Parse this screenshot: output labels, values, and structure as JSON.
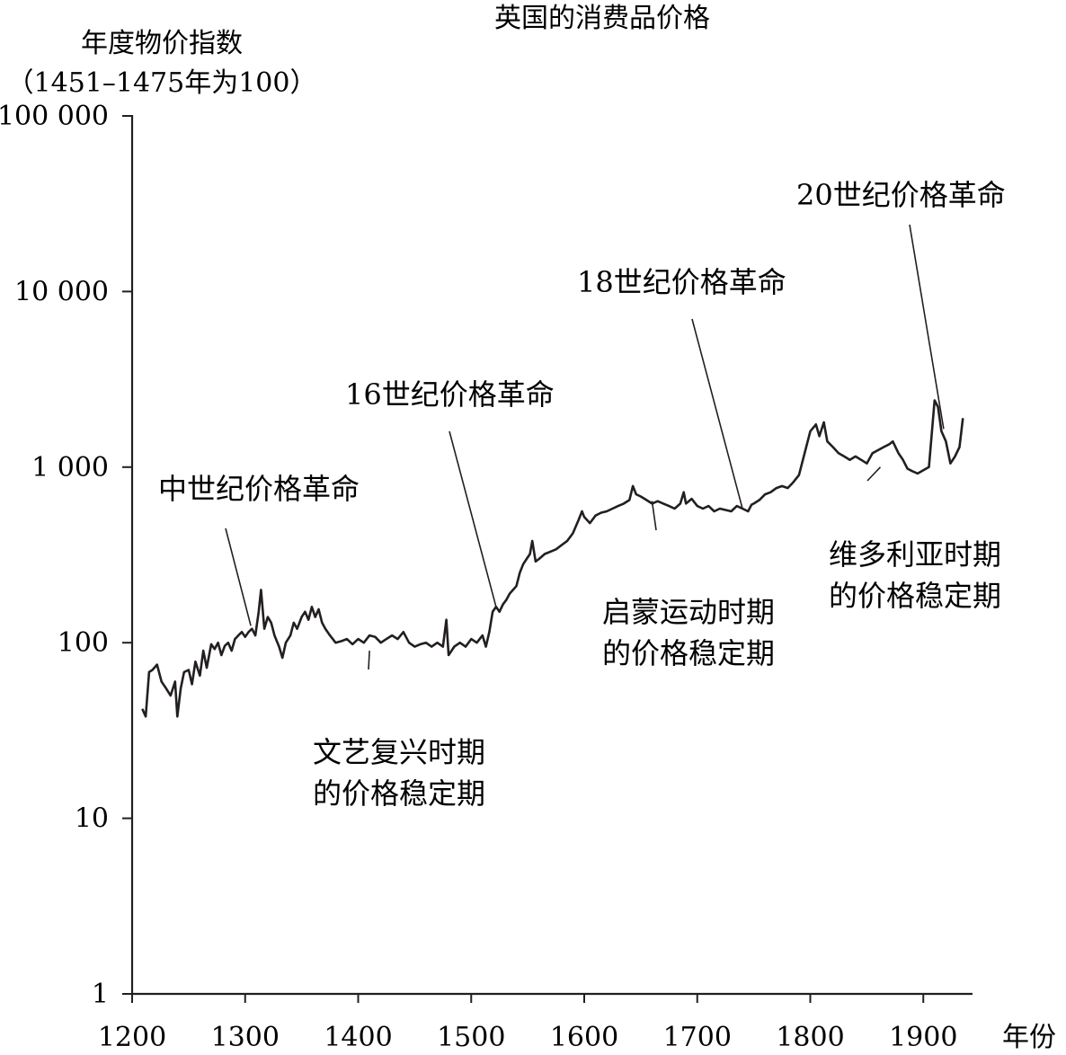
{
  "chart_data": {
    "type": "line",
    "title": "英国的消费品价格",
    "ylabel_lines": [
      "年度物价指数",
      "（1451–1475年为100）"
    ],
    "xlabel": "年份",
    "y_scale": "log",
    "ylim": [
      1,
      100000
    ],
    "xlim": [
      1200,
      1940
    ],
    "y_ticks": [
      {
        "value": 1,
        "label": "1"
      },
      {
        "value": 10,
        "label": "10"
      },
      {
        "value": 100,
        "label": "100"
      },
      {
        "value": 1000,
        "label": "1 000"
      },
      {
        "value": 10000,
        "label": "10 000"
      },
      {
        "value": 100000,
        "label": "100 000"
      }
    ],
    "x_ticks": [
      {
        "value": 1200,
        "label": "1200"
      },
      {
        "value": 1300,
        "label": "1300"
      },
      {
        "value": 1400,
        "label": "1400"
      },
      {
        "value": 1500,
        "label": "1500"
      },
      {
        "value": 1600,
        "label": "1600"
      },
      {
        "value": 1700,
        "label": "1700"
      },
      {
        "value": 1800,
        "label": "1800"
      },
      {
        "value": 1900,
        "label": "1900"
      }
    ],
    "grid": false,
    "series": [
      {
        "color": "#231f20",
        "points": [
          [
            1209,
            42
          ],
          [
            1212,
            38
          ],
          [
            1215,
            68
          ],
          [
            1218,
            70
          ],
          [
            1222,
            75
          ],
          [
            1226,
            60
          ],
          [
            1230,
            55
          ],
          [
            1234,
            50
          ],
          [
            1238,
            60
          ],
          [
            1240,
            38
          ],
          [
            1243,
            55
          ],
          [
            1246,
            68
          ],
          [
            1250,
            70
          ],
          [
            1253,
            58
          ],
          [
            1256,
            78
          ],
          [
            1260,
            65
          ],
          [
            1263,
            90
          ],
          [
            1266,
            72
          ],
          [
            1270,
            98
          ],
          [
            1273,
            92
          ],
          [
            1276,
            100
          ],
          [
            1279,
            85
          ],
          [
            1282,
            96
          ],
          [
            1285,
            100
          ],
          [
            1288,
            90
          ],
          [
            1291,
            105
          ],
          [
            1294,
            110
          ],
          [
            1297,
            115
          ],
          [
            1300,
            108
          ],
          [
            1303,
            115
          ],
          [
            1306,
            120
          ],
          [
            1309,
            110
          ],
          [
            1312,
            150
          ],
          [
            1314,
            200
          ],
          [
            1317,
            120
          ],
          [
            1320,
            140
          ],
          [
            1323,
            130
          ],
          [
            1326,
            110
          ],
          [
            1330,
            95
          ],
          [
            1333,
            82
          ],
          [
            1336,
            100
          ],
          [
            1340,
            110
          ],
          [
            1343,
            130
          ],
          [
            1346,
            120
          ],
          [
            1350,
            140
          ],
          [
            1353,
            150
          ],
          [
            1356,
            135
          ],
          [
            1359,
            160
          ],
          [
            1362,
            140
          ],
          [
            1365,
            155
          ],
          [
            1368,
            130
          ],
          [
            1371,
            120
          ],
          [
            1375,
            110
          ],
          [
            1380,
            100
          ],
          [
            1385,
            102
          ],
          [
            1390,
            105
          ],
          [
            1395,
            98
          ],
          [
            1400,
            105
          ],
          [
            1405,
            100
          ],
          [
            1410,
            110
          ],
          [
            1415,
            108
          ],
          [
            1420,
            100
          ],
          [
            1425,
            105
          ],
          [
            1430,
            110
          ],
          [
            1435,
            105
          ],
          [
            1440,
            115
          ],
          [
            1445,
            100
          ],
          [
            1450,
            95
          ],
          [
            1455,
            98
          ],
          [
            1460,
            100
          ],
          [
            1465,
            95
          ],
          [
            1470,
            100
          ],
          [
            1475,
            95
          ],
          [
            1478,
            135
          ],
          [
            1480,
            85
          ],
          [
            1485,
            95
          ],
          [
            1490,
            100
          ],
          [
            1495,
            95
          ],
          [
            1500,
            105
          ],
          [
            1505,
            100
          ],
          [
            1510,
            110
          ],
          [
            1513,
            95
          ],
          [
            1516,
            115
          ],
          [
            1519,
            150
          ],
          [
            1522,
            160
          ],
          [
            1525,
            150
          ],
          [
            1528,
            165
          ],
          [
            1531,
            175
          ],
          [
            1534,
            190
          ],
          [
            1537,
            200
          ],
          [
            1540,
            210
          ],
          [
            1543,
            250
          ],
          [
            1546,
            280
          ],
          [
            1549,
            300
          ],
          [
            1552,
            320
          ],
          [
            1554,
            380
          ],
          [
            1557,
            290
          ],
          [
            1560,
            300
          ],
          [
            1565,
            320
          ],
          [
            1570,
            330
          ],
          [
            1575,
            340
          ],
          [
            1580,
            360
          ],
          [
            1585,
            380
          ],
          [
            1590,
            420
          ],
          [
            1595,
            500
          ],
          [
            1598,
            560
          ],
          [
            1600,
            520
          ],
          [
            1605,
            480
          ],
          [
            1610,
            530
          ],
          [
            1615,
            550
          ],
          [
            1620,
            560
          ],
          [
            1625,
            580
          ],
          [
            1630,
            600
          ],
          [
            1635,
            620
          ],
          [
            1640,
            650
          ],
          [
            1643,
            780
          ],
          [
            1646,
            700
          ],
          [
            1650,
            680
          ],
          [
            1655,
            650
          ],
          [
            1660,
            620
          ],
          [
            1665,
            640
          ],
          [
            1670,
            620
          ],
          [
            1675,
            600
          ],
          [
            1680,
            580
          ],
          [
            1685,
            620
          ],
          [
            1688,
            720
          ],
          [
            1690,
            620
          ],
          [
            1695,
            660
          ],
          [
            1700,
            600
          ],
          [
            1705,
            580
          ],
          [
            1710,
            600
          ],
          [
            1715,
            560
          ],
          [
            1720,
            580
          ],
          [
            1725,
            570
          ],
          [
            1730,
            560
          ],
          [
            1735,
            600
          ],
          [
            1740,
            580
          ],
          [
            1745,
            560
          ],
          [
            1748,
            610
          ],
          [
            1750,
            620
          ],
          [
            1755,
            650
          ],
          [
            1760,
            700
          ],
          [
            1765,
            720
          ],
          [
            1770,
            760
          ],
          [
            1775,
            780
          ],
          [
            1780,
            760
          ],
          [
            1785,
            820
          ],
          [
            1790,
            900
          ],
          [
            1795,
            1200
          ],
          [
            1800,
            1600
          ],
          [
            1805,
            1750
          ],
          [
            1808,
            1500
          ],
          [
            1812,
            1800
          ],
          [
            1815,
            1400
          ],
          [
            1820,
            1300
          ],
          [
            1825,
            1200
          ],
          [
            1830,
            1150
          ],
          [
            1835,
            1100
          ],
          [
            1840,
            1150
          ],
          [
            1845,
            1100
          ],
          [
            1850,
            1050
          ],
          [
            1855,
            1200
          ],
          [
            1860,
            1250
          ],
          [
            1865,
            1300
          ],
          [
            1870,
            1350
          ],
          [
            1873,
            1400
          ],
          [
            1878,
            1200
          ],
          [
            1882,
            1100
          ],
          [
            1886,
            980
          ],
          [
            1890,
            950
          ],
          [
            1895,
            920
          ],
          [
            1900,
            960
          ],
          [
            1905,
            1000
          ],
          [
            1910,
            2400
          ],
          [
            1913,
            2200
          ],
          [
            1916,
            1600
          ],
          [
            1920,
            1400
          ],
          [
            1924,
            1050
          ],
          [
            1928,
            1150
          ],
          [
            1932,
            1300
          ],
          [
            1935,
            1900
          ]
        ]
      }
    ],
    "annotations": [
      {
        "lines": [
          "中世纪价格革命"
        ],
        "points_to": [
          1305,
          125
        ]
      },
      {
        "lines": [
          "文艺复兴时期",
          "的价格稳定期"
        ],
        "points_to": [
          1410,
          90
        ]
      },
      {
        "lines": [
          "16世纪价格革命"
        ],
        "points_to": [
          1522,
          160
        ]
      },
      {
        "lines": [
          "启蒙运动时期",
          "的价格稳定期"
        ],
        "points_to": [
          1660,
          640
        ]
      },
      {
        "lines": [
          "18世纪价格革命"
        ],
        "points_to": [
          1740,
          580
        ]
      },
      {
        "lines": [
          "维多利亚时期",
          "的价格稳定期"
        ],
        "points_to": [
          1862,
          1000
        ]
      },
      {
        "lines": [
          "20世纪价格革命"
        ],
        "points_to": [
          1918,
          1650
        ]
      }
    ]
  }
}
